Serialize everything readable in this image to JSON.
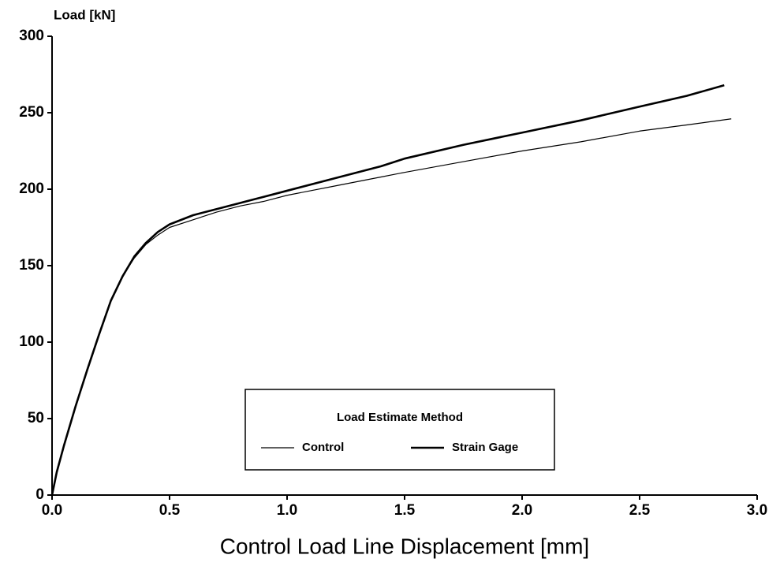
{
  "chart_data": {
    "type": "line",
    "y_label": "Load  [kN]",
    "x_label": "Control Load Line Displacement  [mm]",
    "legend_title": "Load Estimate Method",
    "legend": "bottom center",
    "xlim": [
      0,
      3
    ],
    "ylim": [
      0,
      300
    ],
    "xticks": [
      {
        "value": 0,
        "label": "0.0"
      },
      0.5,
      {
        "value": 1,
        "label": "1.0"
      },
      1.5,
      {
        "value": 2,
        "label": "2.0"
      },
      2.5,
      {
        "value": 3,
        "label": "3.0"
      }
    ],
    "yticks": [
      0,
      50,
      100,
      150,
      200,
      250,
      300
    ],
    "series": [
      {
        "name": "Control",
        "color": "#000000",
        "line_width": 1.2,
        "x": [
          0,
          0.02,
          0.05,
          0.1,
          0.15,
          0.2,
          0.25,
          0.3,
          0.35,
          0.4,
          0.45,
          0.5,
          0.6,
          0.7,
          0.8,
          0.9,
          1.0,
          1.2,
          1.4,
          1.5,
          1.75,
          2.0,
          2.25,
          2.5,
          2.7,
          2.89
        ],
        "values": [
          0,
          15,
          32,
          58,
          82,
          105,
          127,
          143,
          155,
          164,
          170,
          175,
          180,
          185,
          189,
          192,
          196,
          202,
          208,
          211,
          218,
          225,
          231,
          238,
          242,
          246
        ]
      },
      {
        "name": "Strain Gage",
        "color": "#000000",
        "line_width": 2.6,
        "x": [
          0,
          0.02,
          0.05,
          0.1,
          0.15,
          0.2,
          0.25,
          0.3,
          0.35,
          0.4,
          0.45,
          0.5,
          0.6,
          0.7,
          0.8,
          0.9,
          1.0,
          1.2,
          1.4,
          1.5,
          1.75,
          2.0,
          2.25,
          2.5,
          2.7,
          2.86
        ],
        "values": [
          0,
          15,
          32,
          58,
          82,
          105,
          127,
          143,
          156,
          165,
          172,
          177,
          183,
          187,
          191,
          195,
          199,
          207,
          215,
          220,
          229,
          237,
          245,
          254,
          261,
          268
        ]
      }
    ]
  }
}
